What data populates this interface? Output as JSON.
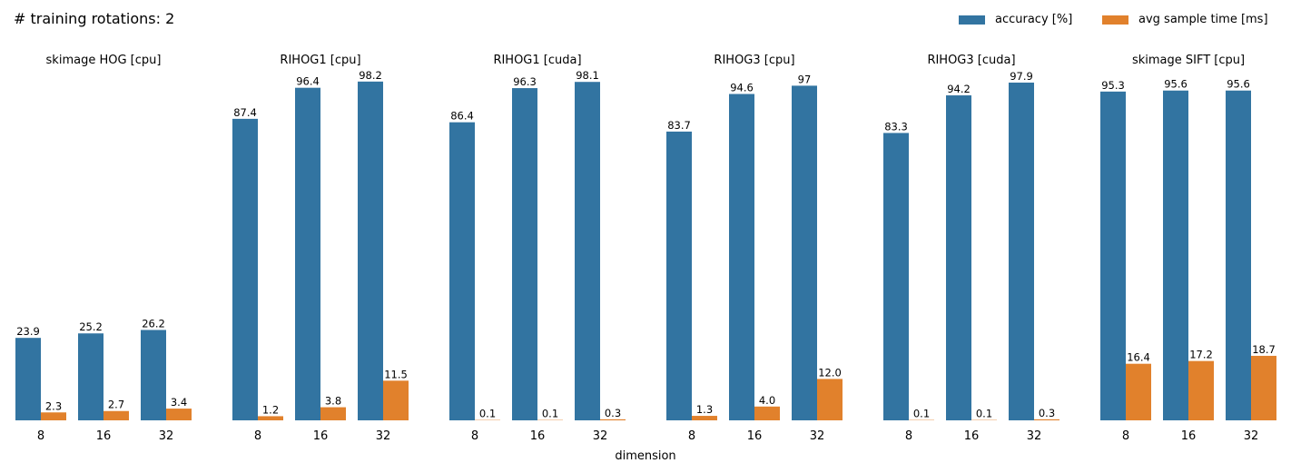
{
  "chart_data": {
    "type": "bar",
    "title": "# training rotations: 2",
    "xlabel": "dimension",
    "legend_position": "top-right",
    "categories": [
      "8",
      "16",
      "32"
    ],
    "series_names": [
      "accuracy [%]",
      "avg sample time [ms]"
    ],
    "colors": [
      "#3274a1",
      "#e1812c"
    ],
    "panels": [
      {
        "title": "skimage HOG [cpu]",
        "series": [
          {
            "values": [
              23.9,
              25.2,
              26.2
            ],
            "labels": [
              "23.9",
              "25.2",
              "26.2"
            ]
          },
          {
            "values": [
              2.3,
              2.7,
              3.4
            ],
            "labels": [
              "2.3",
              "2.7",
              "3.4"
            ]
          }
        ]
      },
      {
        "title": "RIHOG1 [cpu]",
        "series": [
          {
            "values": [
              87.4,
              96.4,
              98.2
            ],
            "labels": [
              "87.4",
              "96.4",
              "98.2"
            ]
          },
          {
            "values": [
              1.2,
              3.8,
              11.5
            ],
            "labels": [
              "1.2",
              "3.8",
              "11.5"
            ]
          }
        ]
      },
      {
        "title": "RIHOG1 [cuda]",
        "series": [
          {
            "values": [
              86.4,
              96.3,
              98.1
            ],
            "labels": [
              "86.4",
              "96.3",
              "98.1"
            ]
          },
          {
            "values": [
              0.1,
              0.1,
              0.3
            ],
            "labels": [
              "0.1",
              "0.1",
              "0.3"
            ]
          }
        ]
      },
      {
        "title": "RIHOG3 [cpu]",
        "series": [
          {
            "values": [
              83.7,
              94.6,
              97
            ],
            "labels": [
              "83.7",
              "94.6",
              "97"
            ]
          },
          {
            "values": [
              1.3,
              4.0,
              12.0
            ],
            "labels": [
              "1.3",
              "4.0",
              "12.0"
            ]
          }
        ]
      },
      {
        "title": "RIHOG3 [cuda]",
        "series": [
          {
            "values": [
              83.3,
              94.2,
              97.9
            ],
            "labels": [
              "83.3",
              "94.2",
              "97.9"
            ]
          },
          {
            "values": [
              0.1,
              0.1,
              0.3
            ],
            "labels": [
              "0.1",
              "0.1",
              "0.3"
            ]
          }
        ]
      },
      {
        "title": "skimage SIFT [cpu]",
        "series": [
          {
            "values": [
              95.3,
              95.6,
              95.6
            ],
            "labels": [
              "95.3",
              "95.6",
              "95.6"
            ]
          },
          {
            "values": [
              16.4,
              17.2,
              18.7
            ],
            "labels": [
              "16.4",
              "17.2",
              "18.7"
            ]
          }
        ]
      }
    ]
  }
}
